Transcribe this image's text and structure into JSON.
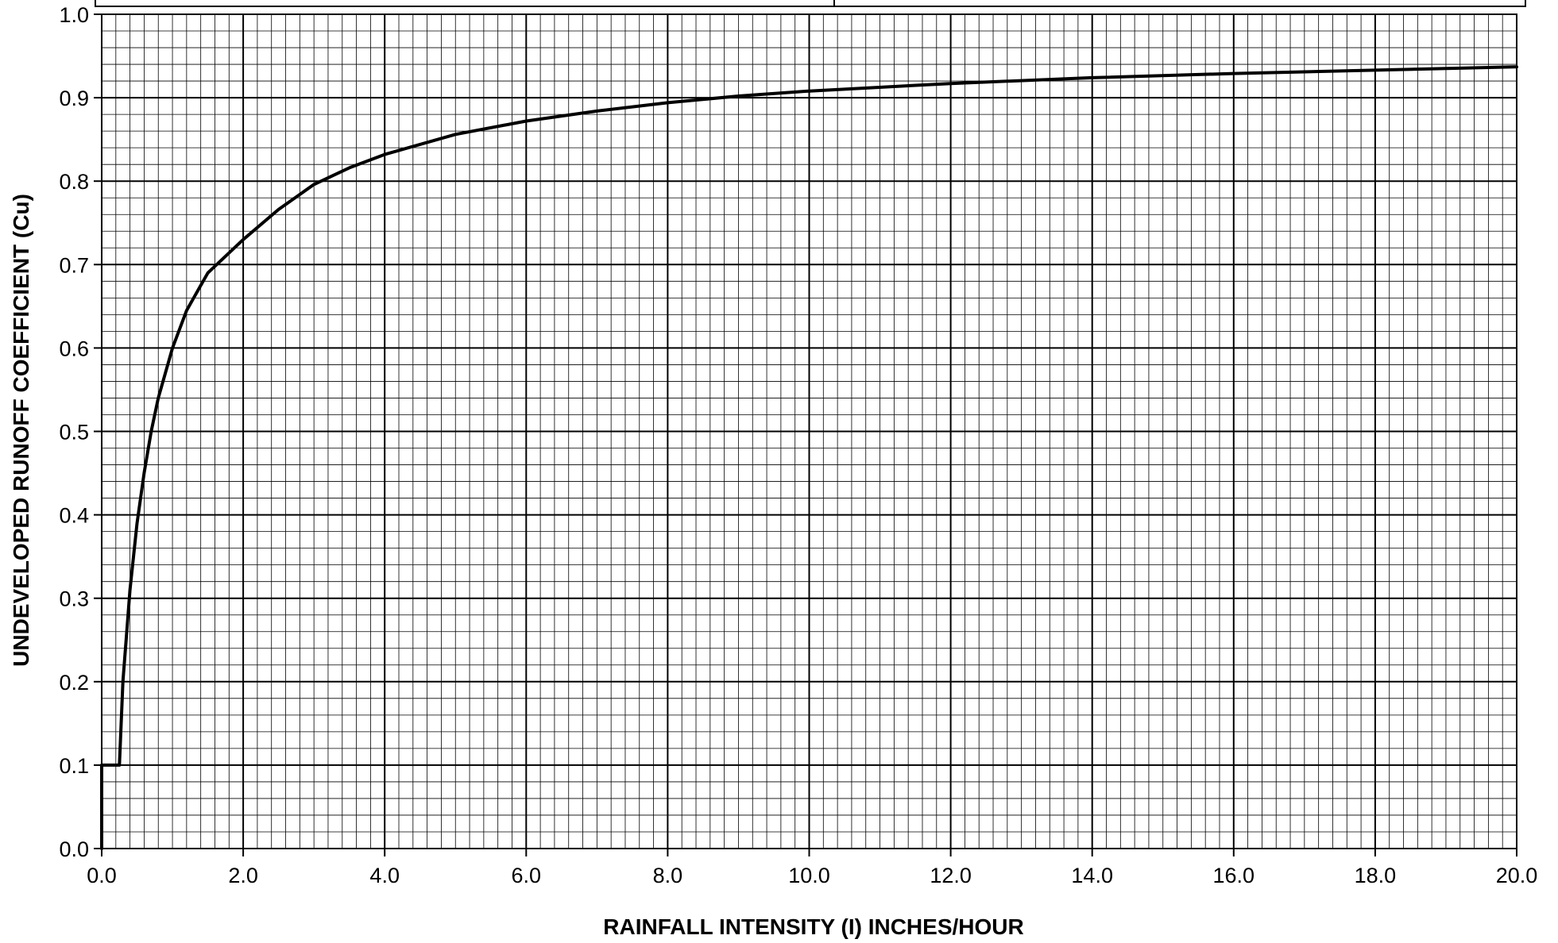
{
  "chart_data": {
    "type": "line",
    "title": "",
    "xlabel": "RAINFALL INTENSITY (I) INCHES/HOUR",
    "ylabel": "UNDEVELOPED RUNOFF COEFFICIENT (Cu)",
    "xlim": [
      0,
      20
    ],
    "ylim": [
      0,
      1.0
    ],
    "x_ticks": [
      "0.0",
      "2.0",
      "4.0",
      "6.0",
      "8.0",
      "10.0",
      "12.0",
      "14.0",
      "16.0",
      "18.0",
      "20.0"
    ],
    "y_ticks": [
      "0.0",
      "0.1",
      "0.2",
      "0.3",
      "0.4",
      "0.5",
      "0.6",
      "0.7",
      "0.8",
      "0.9",
      "1.0"
    ],
    "grid": true,
    "legend": "none",
    "series": [
      {
        "color": "#000000",
        "x": [
          0.0,
          0.0,
          0.25,
          0.3,
          0.4,
          0.5,
          0.6,
          0.7,
          0.8,
          1.0,
          1.2,
          1.5,
          2.0,
          2.5,
          3.0,
          3.5,
          4.0,
          5.0,
          6.0,
          7.0,
          8.0,
          9.0,
          10.0,
          12.0,
          14.0,
          16.0,
          18.0,
          20.0
        ],
        "y": [
          0.0,
          0.1,
          0.1,
          0.2,
          0.31,
          0.39,
          0.45,
          0.5,
          0.54,
          0.6,
          0.645,
          0.69,
          0.73,
          0.766,
          0.796,
          0.816,
          0.832,
          0.856,
          0.872,
          0.884,
          0.894,
          0.902,
          0.908,
          0.917,
          0.924,
          0.929,
          0.933,
          0.937
        ]
      }
    ]
  }
}
